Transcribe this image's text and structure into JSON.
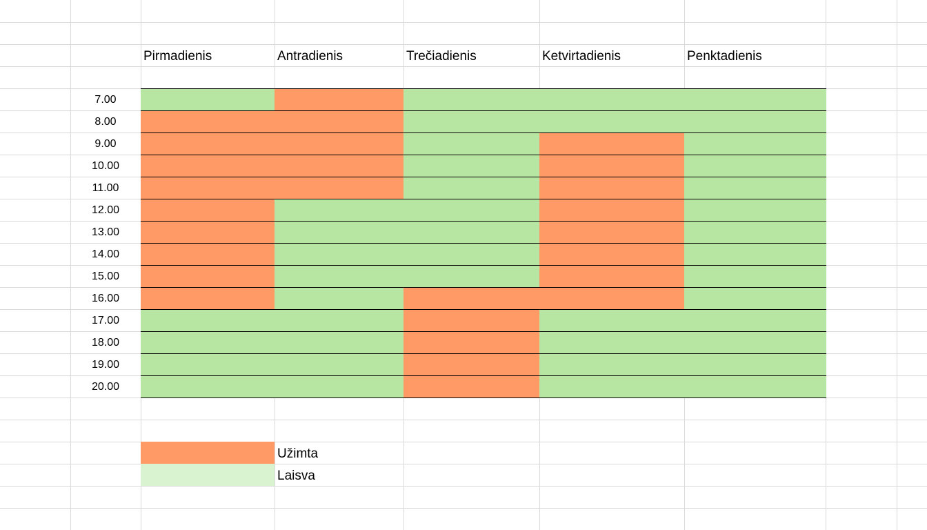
{
  "colors": {
    "busy": "#ff9966",
    "free": "#b6e6a1",
    "legend_free": "#d9f2d0",
    "gridline": "#d9d9d9",
    "border": "#000000"
  },
  "schedule": {
    "days": [
      "Pirmadienis",
      "Antradienis",
      "Trečiadienis",
      "Ketvirtadienis",
      "Penktadienis"
    ],
    "times": [
      "7.00",
      "8.00",
      "9.00",
      "10.00",
      "11.00",
      "12.00",
      "13.00",
      "14.00",
      "15.00",
      "16.00",
      "17.00",
      "18.00",
      "19.00",
      "20.00"
    ],
    "status": [
      [
        "free",
        "busy",
        "free",
        "free",
        "free"
      ],
      [
        "busy",
        "busy",
        "free",
        "free",
        "free"
      ],
      [
        "busy",
        "busy",
        "free",
        "busy",
        "free"
      ],
      [
        "busy",
        "busy",
        "free",
        "busy",
        "free"
      ],
      [
        "busy",
        "busy",
        "free",
        "busy",
        "free"
      ],
      [
        "busy",
        "free",
        "free",
        "busy",
        "free"
      ],
      [
        "busy",
        "free",
        "free",
        "busy",
        "free"
      ],
      [
        "busy",
        "free",
        "free",
        "busy",
        "free"
      ],
      [
        "busy",
        "free",
        "free",
        "busy",
        "free"
      ],
      [
        "busy",
        "free",
        "busy",
        "busy",
        "free"
      ],
      [
        "free",
        "free",
        "busy",
        "free",
        "free"
      ],
      [
        "free",
        "free",
        "busy",
        "free",
        "free"
      ],
      [
        "free",
        "free",
        "busy",
        "free",
        "free"
      ],
      [
        "free",
        "free",
        "busy",
        "free",
        "free"
      ]
    ]
  },
  "legend": {
    "busy_label": "Užimta",
    "free_label": "Laisva"
  }
}
